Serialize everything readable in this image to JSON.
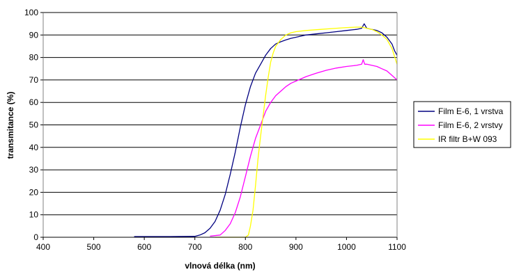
{
  "chart_data": {
    "type": "line",
    "title": "",
    "xlabel": "vlnová délka (nm)",
    "ylabel": "transmitance (%)",
    "xlim": [
      400,
      1100
    ],
    "ylim": [
      0,
      100
    ],
    "x_ticks": [
      400,
      500,
      600,
      700,
      800,
      900,
      1000,
      1100
    ],
    "y_ticks": [
      0,
      10,
      20,
      30,
      40,
      50,
      60,
      70,
      80,
      90,
      100
    ],
    "grid": "horizontal",
    "plot_background": "#ffffff",
    "legend_position": "right",
    "series": [
      {
        "name": "Film E-6, 1 vrstva",
        "color": "#000080",
        "x": [
          580,
          650,
          700,
          710,
          720,
          730,
          740,
          750,
          760,
          770,
          780,
          790,
          800,
          810,
          820,
          830,
          840,
          850,
          860,
          870,
          880,
          890,
          900,
          920,
          940,
          960,
          980,
          1000,
          1020,
          1030,
          1035,
          1040,
          1050,
          1060,
          1070,
          1080,
          1090,
          1095,
          1100
        ],
        "y": [
          0.3,
          0.3,
          0.4,
          1,
          2,
          4,
          7,
          12,
          19,
          28,
          38,
          49,
          59,
          67,
          73,
          77,
          81,
          84,
          86,
          87,
          87.8,
          88.5,
          89,
          90,
          90.5,
          91,
          91.5,
          92,
          92.5,
          93,
          95,
          93,
          92.5,
          92,
          91,
          89,
          86,
          83,
          81
        ]
      },
      {
        "name": "Film E-6, 2 vrstvy",
        "color": "#ff00ff",
        "x": [
          730,
          750,
          760,
          770,
          780,
          790,
          800,
          810,
          820,
          830,
          840,
          850,
          860,
          870,
          880,
          890,
          900,
          920,
          940,
          960,
          980,
          1000,
          1020,
          1030,
          1033,
          1036,
          1040,
          1050,
          1060,
          1070,
          1080,
          1090,
          1100
        ],
        "y": [
          0.5,
          1,
          3,
          6,
          11,
          18,
          27,
          36,
          44,
          50,
          56,
          60,
          63,
          65,
          67,
          68.5,
          69.5,
          71.5,
          73,
          74.3,
          75.3,
          76,
          76.5,
          77,
          79,
          77,
          77,
          76.5,
          76,
          75,
          74,
          72,
          70
        ]
      },
      {
        "name": "IR filtr B+W 093",
        "color": "#ffff00",
        "x": [
          740,
          800,
          806,
          810,
          815,
          820,
          825,
          830,
          835,
          840,
          845,
          850,
          855,
          860,
          870,
          880,
          890,
          900,
          920,
          950,
          980,
          1000,
          1020,
          1030,
          1040,
          1050,
          1060,
          1070,
          1080,
          1090,
          1100
        ],
        "y": [
          0,
          0,
          1,
          5,
          12,
          23,
          35,
          45,
          54,
          63,
          71,
          78,
          82,
          85,
          88,
          90,
          91,
          91.5,
          92,
          92.5,
          93,
          93.3,
          93.5,
          93.5,
          93,
          92.5,
          91.5,
          90,
          88,
          84,
          77
        ]
      }
    ]
  }
}
